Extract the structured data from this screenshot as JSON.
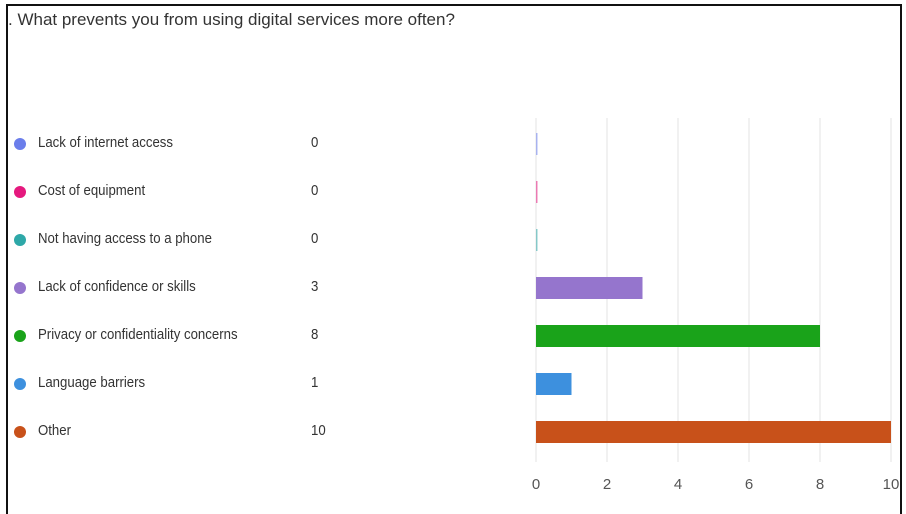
{
  "chart_data": {
    "type": "bar",
    "title": ". What prevents you from using digital services more often?",
    "xlabel": "",
    "ylabel": "",
    "xlim": [
      0,
      10
    ],
    "x_ticks": [
      "0",
      "2",
      "4",
      "6",
      "8",
      "10"
    ],
    "grid": true,
    "legend_placement": "left",
    "categories": [
      "Lack of internet access",
      "Cost of equipment",
      "Not having access to a phone",
      "Lack of confidence or skills",
      "Privacy or confidentiality concerns",
      "Language barriers",
      "Other"
    ],
    "values": [
      0,
      0,
      0,
      3,
      8,
      1,
      10
    ],
    "counts": [
      "0",
      "0",
      "0",
      "3",
      "8",
      "1",
      "10"
    ],
    "colors": [
      "#6B7EEB",
      "#E5197E",
      "#2EA8A8",
      "#9575CD",
      "#1AA31A",
      "#3D90DE",
      "#C8511A"
    ]
  }
}
